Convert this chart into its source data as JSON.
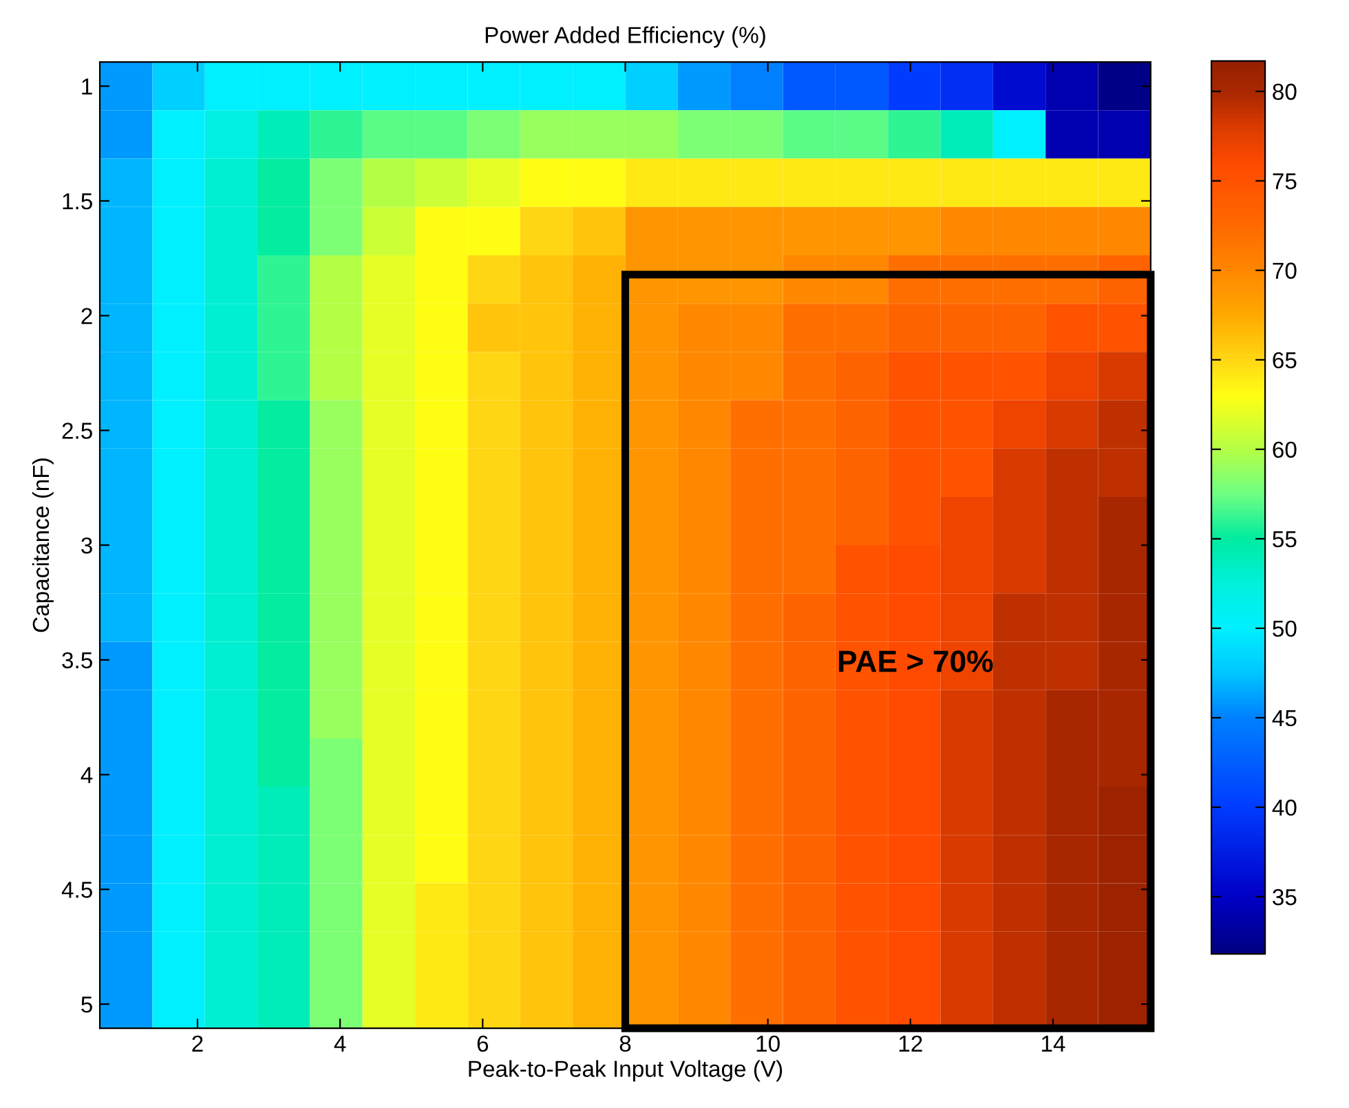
{
  "chart_data": {
    "type": "heatmap",
    "title": "Power Added Efficiency (%)",
    "xlabel": "Peak-to-Peak Input Voltage (V)",
    "ylabel": "Capacitance (nF)",
    "xlim": [
      0.63,
      15.37
    ],
    "ylim": [
      5.105,
      0.895
    ],
    "xticks": [
      2,
      4,
      6,
      8,
      10,
      12,
      14
    ],
    "yticks": [
      1,
      1.5,
      2,
      2.5,
      3,
      3.5,
      4,
      4.5,
      5
    ],
    "clim": [
      31.8,
      81.7
    ],
    "cticks": [
      35,
      40,
      45,
      50,
      55,
      60,
      65,
      70,
      75,
      80
    ],
    "cells": [
      [
        46,
        48,
        50,
        50,
        50,
        50,
        50,
        50,
        50,
        50,
        48,
        46,
        45,
        42,
        42,
        40,
        39,
        36,
        34,
        32
      ],
      [
        46,
        50,
        52,
        54,
        56,
        57,
        57,
        58,
        59,
        59,
        59,
        58,
        58,
        57,
        57,
        56,
        54,
        50,
        34,
        34
      ],
      [
        47,
        50,
        53,
        55,
        58,
        60,
        61,
        62,
        63,
        63,
        64,
        64,
        64,
        64,
        64,
        64,
        64,
        64,
        64,
        64
      ],
      [
        47,
        50,
        53,
        55,
        58,
        61,
        63,
        63,
        65,
        66,
        69,
        69,
        69,
        69,
        69,
        69,
        70,
        70,
        70,
        70
      ],
      [
        47,
        50,
        53,
        56,
        60,
        62,
        63,
        65,
        66,
        67,
        69,
        69,
        69,
        70,
        70,
        72,
        72,
        72,
        72,
        73
      ],
      [
        47,
        50,
        53,
        56,
        60,
        62,
        63,
        66,
        66,
        67,
        69,
        70,
        70,
        72,
        72,
        73,
        73,
        73,
        75,
        75
      ],
      [
        47,
        50,
        53,
        56,
        60,
        62,
        63,
        65,
        66,
        67,
        69,
        70,
        70,
        72,
        73,
        75,
        75,
        75,
        77,
        78
      ],
      [
        47,
        50,
        53,
        55,
        59,
        62,
        63,
        65,
        66,
        67,
        69,
        70,
        72,
        72,
        73,
        75,
        75,
        77,
        78,
        79
      ],
      [
        47,
        50,
        53,
        55,
        59,
        62,
        63,
        65,
        66,
        67,
        69,
        70,
        72,
        72,
        73,
        75,
        75,
        78,
        79,
        79
      ],
      [
        47,
        50,
        53,
        55,
        59,
        62,
        63,
        65,
        66,
        67,
        69,
        70,
        72,
        72,
        73,
        75,
        77,
        78,
        79,
        80
      ],
      [
        47,
        50,
        53,
        55,
        59,
        62,
        63,
        65,
        66,
        67,
        69,
        70,
        72,
        72,
        75,
        76,
        77,
        78,
        79,
        80
      ],
      [
        47,
        50,
        53,
        55,
        59,
        62,
        63,
        65,
        66,
        67,
        69,
        70,
        72,
        73,
        75,
        76,
        77,
        79,
        79,
        80
      ],
      [
        46,
        50,
        53,
        55,
        59,
        62,
        63,
        65,
        66,
        67,
        69,
        70,
        72,
        73,
        75,
        76,
        77,
        79,
        79,
        80
      ],
      [
        46,
        50,
        53,
        55,
        59,
        62,
        63,
        65,
        66,
        67,
        69,
        70,
        72,
        73,
        75,
        76,
        78,
        79,
        80,
        80
      ],
      [
        46,
        50,
        53,
        55,
        58,
        62,
        63,
        65,
        66,
        67,
        69,
        70,
        72,
        73,
        75,
        76,
        78,
        79,
        80,
        80
      ],
      [
        46,
        50,
        53,
        54,
        58,
        62,
        63,
        65,
        66,
        67,
        69,
        70,
        72,
        73,
        75,
        76,
        78,
        79,
        80,
        81
      ],
      [
        46,
        50,
        53,
        54,
        58,
        62,
        63,
        65,
        66,
        67,
        69,
        70,
        72,
        73,
        75,
        76,
        78,
        79,
        80,
        81
      ],
      [
        46,
        50,
        53,
        54,
        58,
        62,
        64,
        65,
        66,
        67,
        69,
        70,
        72,
        73,
        75,
        76,
        78,
        79,
        80,
        81
      ],
      [
        46,
        50,
        53,
        54,
        58,
        62,
        64,
        65,
        66,
        67,
        69,
        70,
        72,
        73,
        75,
        76,
        78,
        79,
        80,
        81
      ],
      [
        46,
        50,
        53,
        54,
        58,
        62,
        64,
        65,
        66,
        67,
        69,
        70,
        72,
        73,
        75,
        76,
        78,
        79,
        80,
        81
      ]
    ],
    "annotations": [
      "PAE > 70%"
    ]
  }
}
